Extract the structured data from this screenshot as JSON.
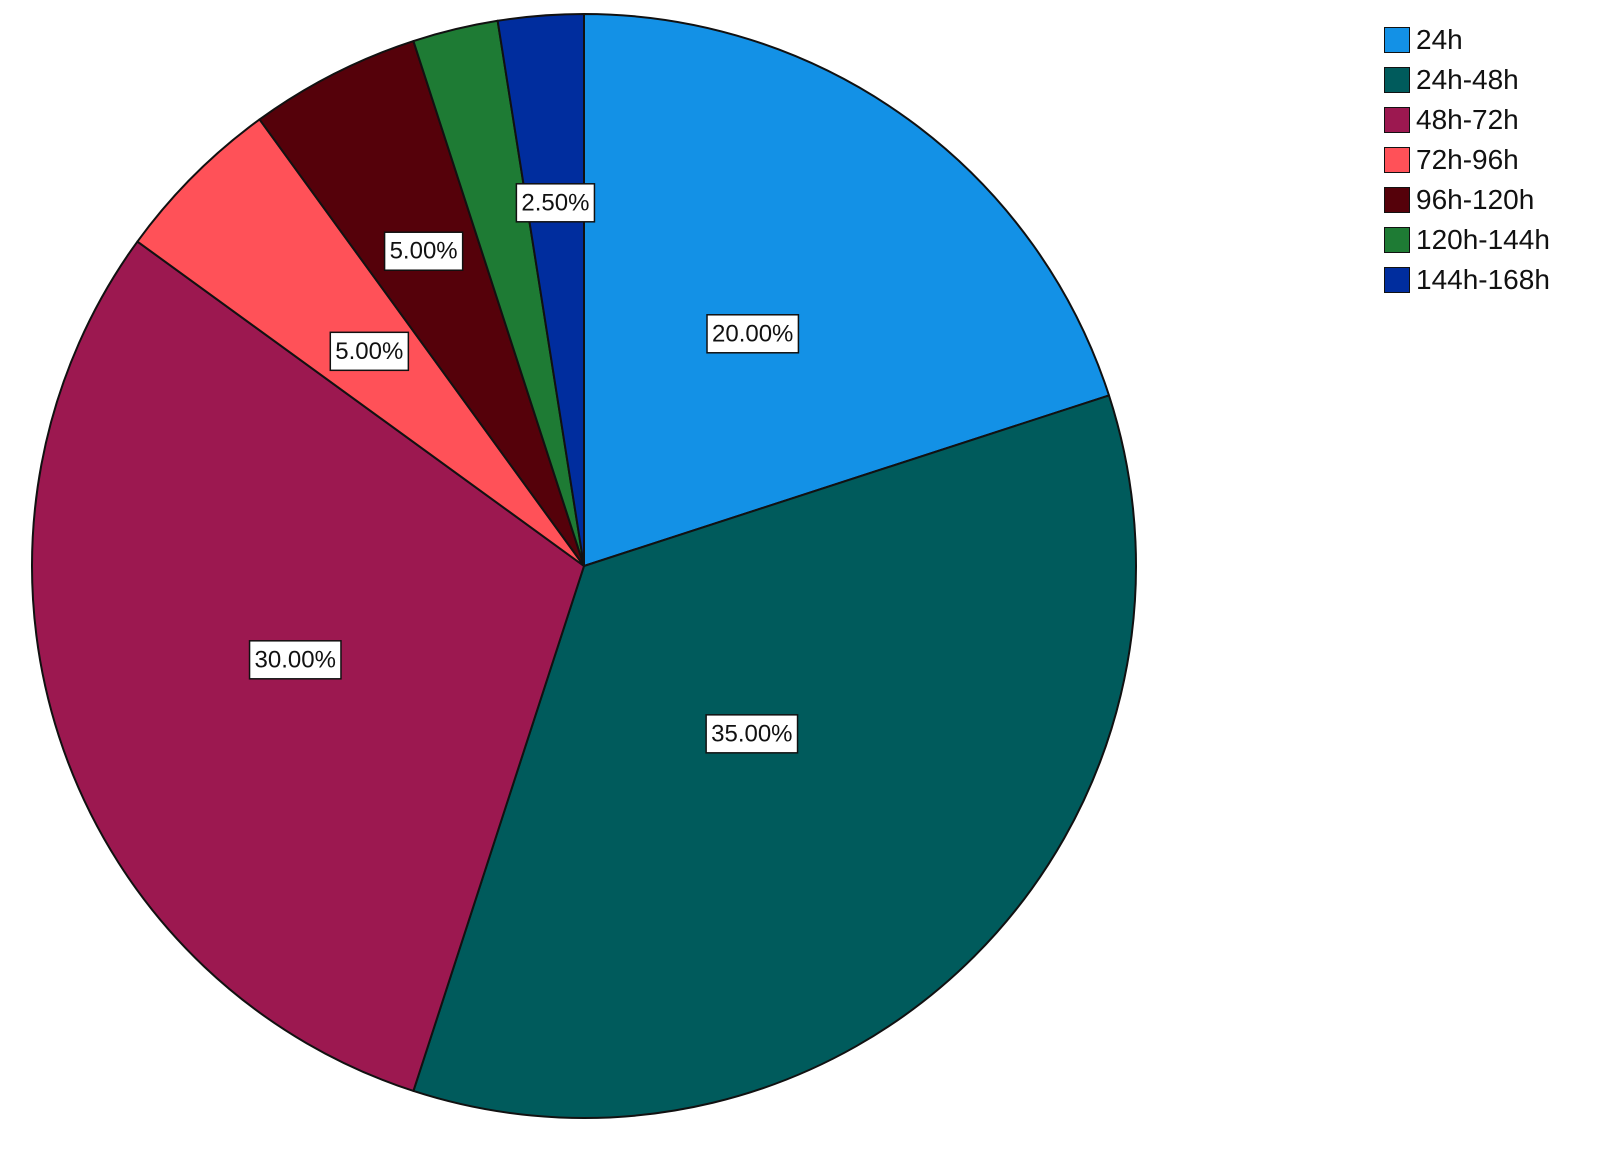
{
  "chart_data": {
    "type": "pie",
    "title": "",
    "start_angle_deg": 0,
    "direction": "clockwise",
    "legend_position": "top-right",
    "slices": [
      {
        "label": "24h",
        "value": 20.0,
        "display": "20.00%",
        "color": "#1391E6"
      },
      {
        "label": "24h-48h",
        "value": 35.0,
        "display": "35.00%",
        "color": "#005B5C"
      },
      {
        "label": "48h-72h",
        "value": 30.0,
        "display": "30.00%",
        "color": "#9C1850"
      },
      {
        "label": "72h-96h",
        "value": 5.0,
        "display": "5.00%",
        "color": "#FF5158"
      },
      {
        "label": "96h-120h",
        "value": 5.0,
        "display": "5.00%",
        "color": "#55010A"
      },
      {
        "label": "120h-144h",
        "value": 2.5,
        "display": "",
        "color": "#1E7B34"
      },
      {
        "label": "144h-168h",
        "value": 2.5,
        "display": "2.50%",
        "color": "#002D9E"
      }
    ]
  },
  "legend": {
    "items": [
      {
        "label": "24h",
        "color": "#1391E6"
      },
      {
        "label": "24h-48h",
        "color": "#005B5C"
      },
      {
        "label": "48h-72h",
        "color": "#9C1850"
      },
      {
        "label": "72h-96h",
        "color": "#FF5158"
      },
      {
        "label": "96h-120h",
        "color": "#55010A"
      },
      {
        "label": "120h-144h",
        "color": "#1E7B34"
      },
      {
        "label": "144h-168h",
        "color": "#002D9E"
      }
    ]
  }
}
